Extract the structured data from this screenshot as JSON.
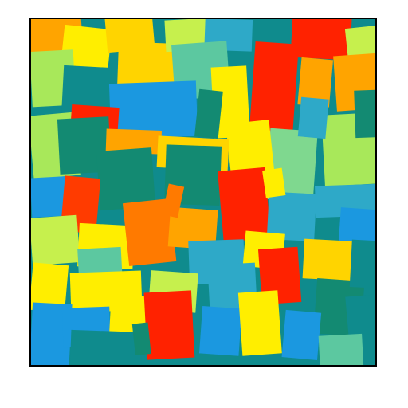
{
  "image": {
    "description_colors": {
      "background": "#ffffff",
      "border": "#000000"
    },
    "palette": [
      "#0f8b8d",
      "#138a72",
      "#1b98e0",
      "#2ea9c8",
      "#5cc8a0",
      "#7fd88f",
      "#a8e85a",
      "#c6f04d",
      "#ffee00",
      "#ffd400",
      "#ffa400",
      "#ff7a00",
      "#ff3b00",
      "#ff2200"
    ]
  }
}
